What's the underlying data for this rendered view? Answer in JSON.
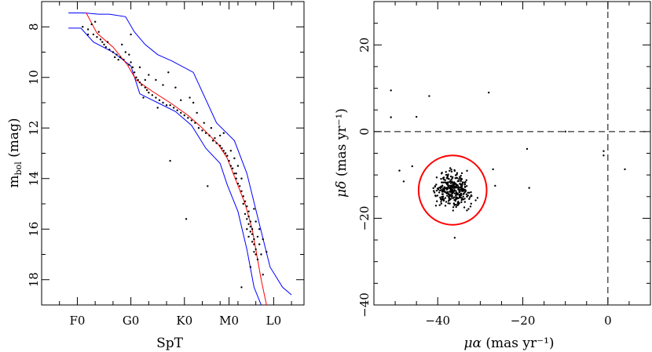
{
  "chart_data": [
    {
      "type": "scatter",
      "xlabel": "SpT",
      "ylabel": "m",
      "ylabel_sub": "bol",
      "ylabel_unit": " (mag)",
      "x_categories": [
        "F0",
        "G0",
        "K0",
        "M0",
        "L0"
      ],
      "ylim": [
        19,
        7
      ],
      "yticks": [
        8,
        10,
        12,
        14,
        16,
        18
      ],
      "ytick_labels": [
        "8",
        "10",
        "12",
        "14",
        "16",
        "18"
      ],
      "colors": {
        "points": "#000000",
        "sequence": "#ff0000",
        "envelope": "#0000ff"
      },
      "sequence": [
        [
          0.5,
          7.45
        ],
        [
          1.1,
          8.25
        ],
        [
          2.0,
          8.8
        ],
        [
          2.8,
          9.5
        ],
        [
          3.3,
          10.1
        ],
        [
          4.2,
          10.55
        ],
        [
          5.2,
          11.0
        ],
        [
          6.2,
          11.5
        ],
        [
          7.0,
          12.0
        ],
        [
          7.9,
          12.65
        ],
        [
          8.4,
          13.2
        ],
        [
          8.9,
          14.1
        ],
        [
          9.4,
          15.0
        ],
        [
          9.8,
          16.0
        ],
        [
          10.1,
          17.2
        ],
        [
          10.3,
          18.0
        ],
        [
          10.6,
          19.0
        ]
      ],
      "envelope_upper": [
        [
          -0.5,
          7.45
        ],
        [
          0.4,
          7.45
        ],
        [
          1.2,
          7.5
        ],
        [
          1.8,
          7.5
        ],
        [
          2.7,
          7.6
        ],
        [
          3.2,
          8.2
        ],
        [
          3.8,
          8.7
        ],
        [
          4.5,
          9.1
        ],
        [
          5.3,
          9.35
        ],
        [
          6.5,
          9.8
        ],
        [
          7.8,
          11.8
        ],
        [
          8.8,
          12.5
        ],
        [
          9.5,
          13.8
        ],
        [
          10.2,
          15.8
        ],
        [
          10.8,
          17.5
        ],
        [
          11.5,
          18.3
        ],
        [
          12.0,
          18.6
        ]
      ],
      "envelope_lower": [
        [
          -0.5,
          8.05
        ],
        [
          0.2,
          8.05
        ],
        [
          0.9,
          8.6
        ],
        [
          2.0,
          9.0
        ],
        [
          3.0,
          9.55
        ],
        [
          3.5,
          10.65
        ],
        [
          4.5,
          11.0
        ],
        [
          5.5,
          11.35
        ],
        [
          6.4,
          11.9
        ],
        [
          7.2,
          12.8
        ],
        [
          8.0,
          13.4
        ],
        [
          8.4,
          14.25
        ],
        [
          9.0,
          15.3
        ],
        [
          9.5,
          16.8
        ],
        [
          9.9,
          18.3
        ],
        [
          10.3,
          19.0
        ]
      ],
      "points": [
        [
          0.3,
          8.0
        ],
        [
          0.6,
          8.1
        ],
        [
          0.8,
          7.9
        ],
        [
          0.9,
          8.3
        ],
        [
          1.0,
          7.8
        ],
        [
          1.1,
          8.4
        ],
        [
          1.2,
          8.2
        ],
        [
          1.3,
          8.5
        ],
        [
          1.4,
          8.6
        ],
        [
          1.6,
          8.8
        ],
        [
          1.8,
          8.9
        ],
        [
          2.0,
          9.0
        ],
        [
          2.2,
          9.1
        ],
        [
          2.4,
          9.2
        ],
        [
          2.6,
          9.3
        ],
        [
          2.9,
          9.5
        ],
        [
          3.0,
          9.4
        ],
        [
          3.1,
          9.6
        ],
        [
          3.2,
          9.8
        ],
        [
          3.3,
          10.0
        ],
        [
          3.4,
          10.1
        ],
        [
          3.5,
          10.2
        ],
        [
          3.6,
          10.3
        ],
        [
          3.8,
          10.4
        ],
        [
          3.9,
          10.5
        ],
        [
          4.0,
          10.6
        ],
        [
          4.2,
          10.7
        ],
        [
          4.4,
          10.8
        ],
        [
          4.6,
          10.9
        ],
        [
          4.8,
          11.0
        ],
        [
          5.0,
          11.1
        ],
        [
          5.2,
          11.1
        ],
        [
          5.4,
          11.2
        ],
        [
          5.6,
          11.3
        ],
        [
          5.8,
          11.4
        ],
        [
          6.0,
          11.5
        ],
        [
          6.2,
          11.6
        ],
        [
          6.4,
          11.7
        ],
        [
          6.6,
          11.8
        ],
        [
          6.8,
          12.0
        ],
        [
          7.0,
          12.1
        ],
        [
          7.2,
          12.2
        ],
        [
          7.4,
          12.3
        ],
        [
          7.6,
          12.5
        ],
        [
          7.8,
          12.6
        ],
        [
          8.0,
          12.7
        ],
        [
          8.1,
          12.8
        ],
        [
          8.2,
          12.9
        ],
        [
          8.3,
          13.0
        ],
        [
          8.4,
          13.1
        ],
        [
          8.5,
          13.3
        ],
        [
          8.6,
          13.5
        ],
        [
          8.7,
          13.6
        ],
        [
          8.8,
          13.8
        ],
        [
          8.9,
          14.0
        ],
        [
          9.0,
          14.2
        ],
        [
          9.1,
          14.3
        ],
        [
          9.2,
          14.5
        ],
        [
          9.3,
          14.7
        ],
        [
          9.4,
          14.9
        ],
        [
          9.5,
          15.1
        ],
        [
          9.6,
          15.3
        ],
        [
          9.6,
          15.5
        ],
        [
          9.7,
          15.7
        ],
        [
          9.7,
          15.9
        ],
        [
          9.8,
          16.0
        ],
        [
          9.8,
          16.2
        ],
        [
          9.9,
          16.4
        ],
        [
          9.9,
          16.6
        ],
        [
          10.0,
          16.8
        ],
        [
          10.0,
          17.0
        ],
        [
          10.1,
          17.2
        ],
        [
          9.5,
          15.6
        ],
        [
          9.6,
          15.8
        ],
        [
          9.7,
          16.1
        ],
        [
          9.8,
          16.5
        ],
        [
          9.9,
          16.9
        ],
        [
          10.1,
          16.3
        ],
        [
          10.2,
          16.6
        ],
        [
          9.4,
          15.4
        ],
        [
          9.5,
          16.0
        ],
        [
          9.6,
          16.3
        ],
        [
          10.0,
          15.7
        ],
        [
          10.3,
          17.0
        ],
        [
          9.2,
          14.0
        ],
        [
          9.0,
          13.5
        ],
        [
          8.8,
          13.2
        ],
        [
          8.6,
          12.9
        ],
        [
          2.5,
          8.7
        ],
        [
          2.7,
          9.0
        ],
        [
          2.9,
          9.1
        ],
        [
          3.5,
          9.6
        ],
        [
          4.0,
          9.9
        ],
        [
          4.4,
          10.1
        ],
        [
          4.8,
          10.3
        ],
        [
          5.1,
          9.8
        ],
        [
          5.5,
          10.4
        ],
        [
          5.8,
          10.9
        ],
        [
          6.3,
          10.8
        ],
        [
          6.7,
          11.4
        ],
        [
          7.1,
          11.8
        ],
        [
          7.5,
          12.0
        ],
        [
          8.0,
          12.3
        ],
        [
          1.7,
          8.6
        ],
        [
          2.3,
          9.3
        ],
        [
          3.7,
          10.8
        ],
        [
          4.5,
          11.2
        ],
        [
          3.0,
          8.3
        ],
        [
          5.2,
          13.3
        ],
        [
          6.1,
          15.6
        ],
        [
          7.3,
          14.3
        ],
        [
          9.2,
          18.3
        ],
        [
          10.4,
          17.8
        ],
        [
          10.6,
          16.9
        ],
        [
          9.7,
          17.5
        ],
        [
          0.6,
          8.3
        ],
        [
          1.5,
          8.7
        ],
        [
          2.1,
          9.2
        ],
        [
          3.8,
          10.1
        ],
        [
          6.5,
          11.0
        ],
        [
          7.7,
          12.4
        ],
        [
          8.2,
          12.2
        ],
        [
          8.9,
          13.8
        ],
        [
          9.3,
          15.0
        ],
        [
          9.9,
          15.2
        ],
        [
          10.2,
          16.0
        ],
        [
          10.4,
          16.4
        ]
      ]
    },
    {
      "type": "scatter",
      "xlabel": "μα",
      "xlabel_unit": " (mas yr⁻¹)",
      "ylabel": "μδ",
      "ylabel_unit": " (mas yr⁻¹)",
      "xlim": [
        -55,
        10
      ],
      "ylim": [
        -40,
        30
      ],
      "xticks": [
        -40,
        -20,
        0
      ],
      "xtick_labels": [
        "−40",
        "−20",
        "0"
      ],
      "yticks": [
        -40,
        -20,
        0,
        20
      ],
      "ytick_labels": [
        "−40",
        "−20",
        "0",
        "20"
      ],
      "dashed_lines": {
        "x": 0,
        "y": 0
      },
      "selection_circle": {
        "center": [
          -36.5,
          -13.5
        ],
        "radius": 8
      },
      "colors": {
        "points": "#000000",
        "circle": "#ff0000",
        "dashed": "#000000"
      },
      "outliers": [
        [
          -51,
          9.5
        ],
        [
          -51,
          3.3
        ],
        [
          -45,
          3.4
        ],
        [
          -42,
          8.2
        ],
        [
          -28,
          9.0
        ],
        [
          -10,
          0.0
        ],
        [
          -1,
          -4.5
        ],
        [
          -1,
          -5.5
        ],
        [
          4,
          -8.7
        ],
        [
          -19,
          -4.0
        ],
        [
          -18.5,
          -13.0
        ],
        [
          -27,
          -8.7
        ],
        [
          -46,
          -8.0
        ],
        [
          -49,
          -9.0
        ],
        [
          -48,
          -11.5
        ],
        [
          -36,
          -24.5
        ],
        [
          -26.5,
          -12.5
        ]
      ]
    }
  ]
}
